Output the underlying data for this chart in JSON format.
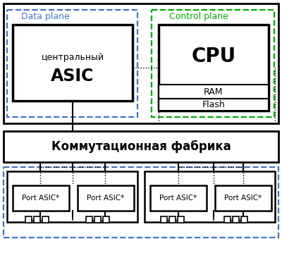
{
  "bg_color": "#ffffff",
  "data_plane_label": "Data plane",
  "control_plane_label": "Control plane",
  "asic_label1": "центральный",
  "asic_label2": "ASIC",
  "cpu_label": "CPU",
  "ram_label": "RAM",
  "flash_label": "Flash",
  "fabric_label": "Коммутационная фабрика",
  "port_label": "Port ASIC*",
  "data_plane_color": "#4472C4",
  "control_plane_color": "#00AA00",
  "box_color": "#000000"
}
